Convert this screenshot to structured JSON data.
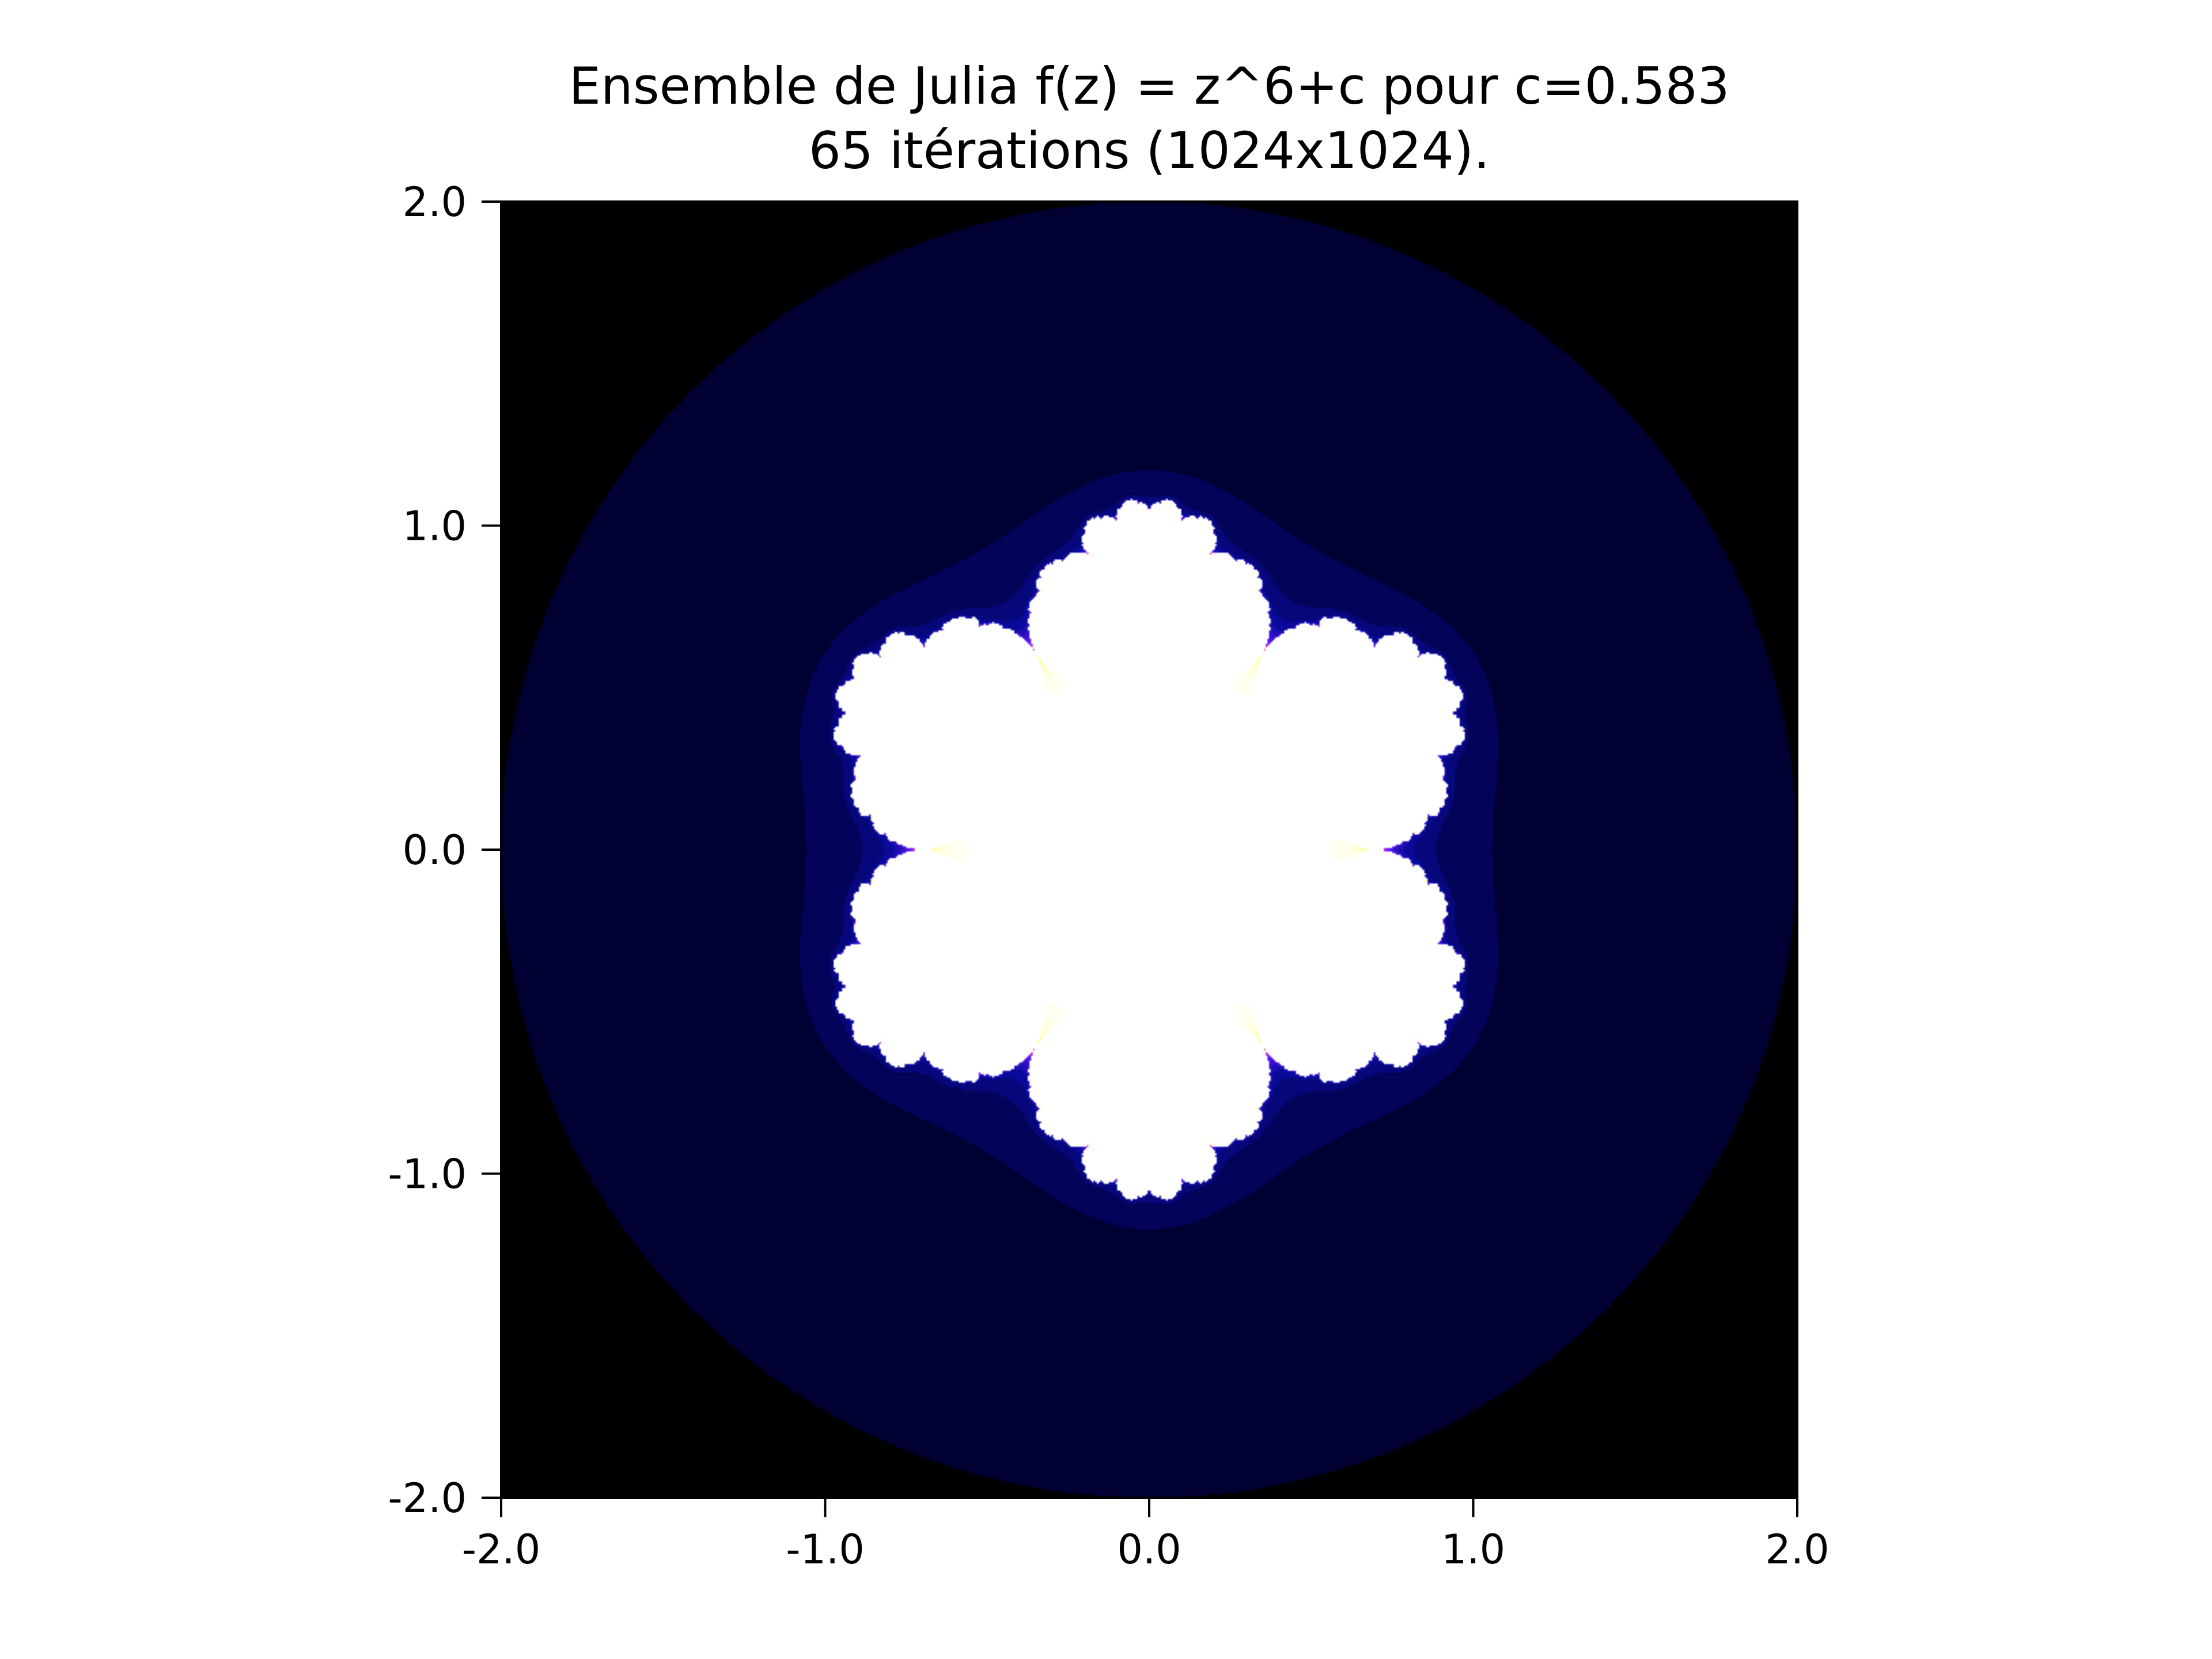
{
  "chart_data": {
    "type": "heatmap",
    "title": "Ensemble de Julia f(z) = z^6+c pour c=0.583",
    "subtitle": "65 itérations (1024x1024).",
    "xlabel": "",
    "ylabel": "",
    "xlim": [
      -2.0,
      2.0
    ],
    "ylim": [
      -2.0,
      2.0
    ],
    "xticks": [
      "-2.0",
      "-1.0",
      "0.0",
      "1.0",
      "2.0"
    ],
    "yticks": [
      "2.0",
      "1.0",
      "0.0",
      "-1.0",
      "-2.0"
    ],
    "xtick_values": [
      -2.0,
      -1.0,
      0.0,
      1.0,
      2.0
    ],
    "ytick_values": [
      2.0,
      1.0,
      0.0,
      -1.0,
      -2.0
    ],
    "grid": false,
    "legend": null,
    "exponent": 6,
    "c": 0.583,
    "iterations": 65,
    "resolution": "1024x1024",
    "colormap": [
      "#000000",
      "#000038",
      "#0a0aa0",
      "#6a1aff",
      "#ff30c0",
      "#ff9070",
      "#ffc040",
      "#ffe020",
      "#ffff40",
      "#ffffff"
    ],
    "background_color": "#000000"
  }
}
